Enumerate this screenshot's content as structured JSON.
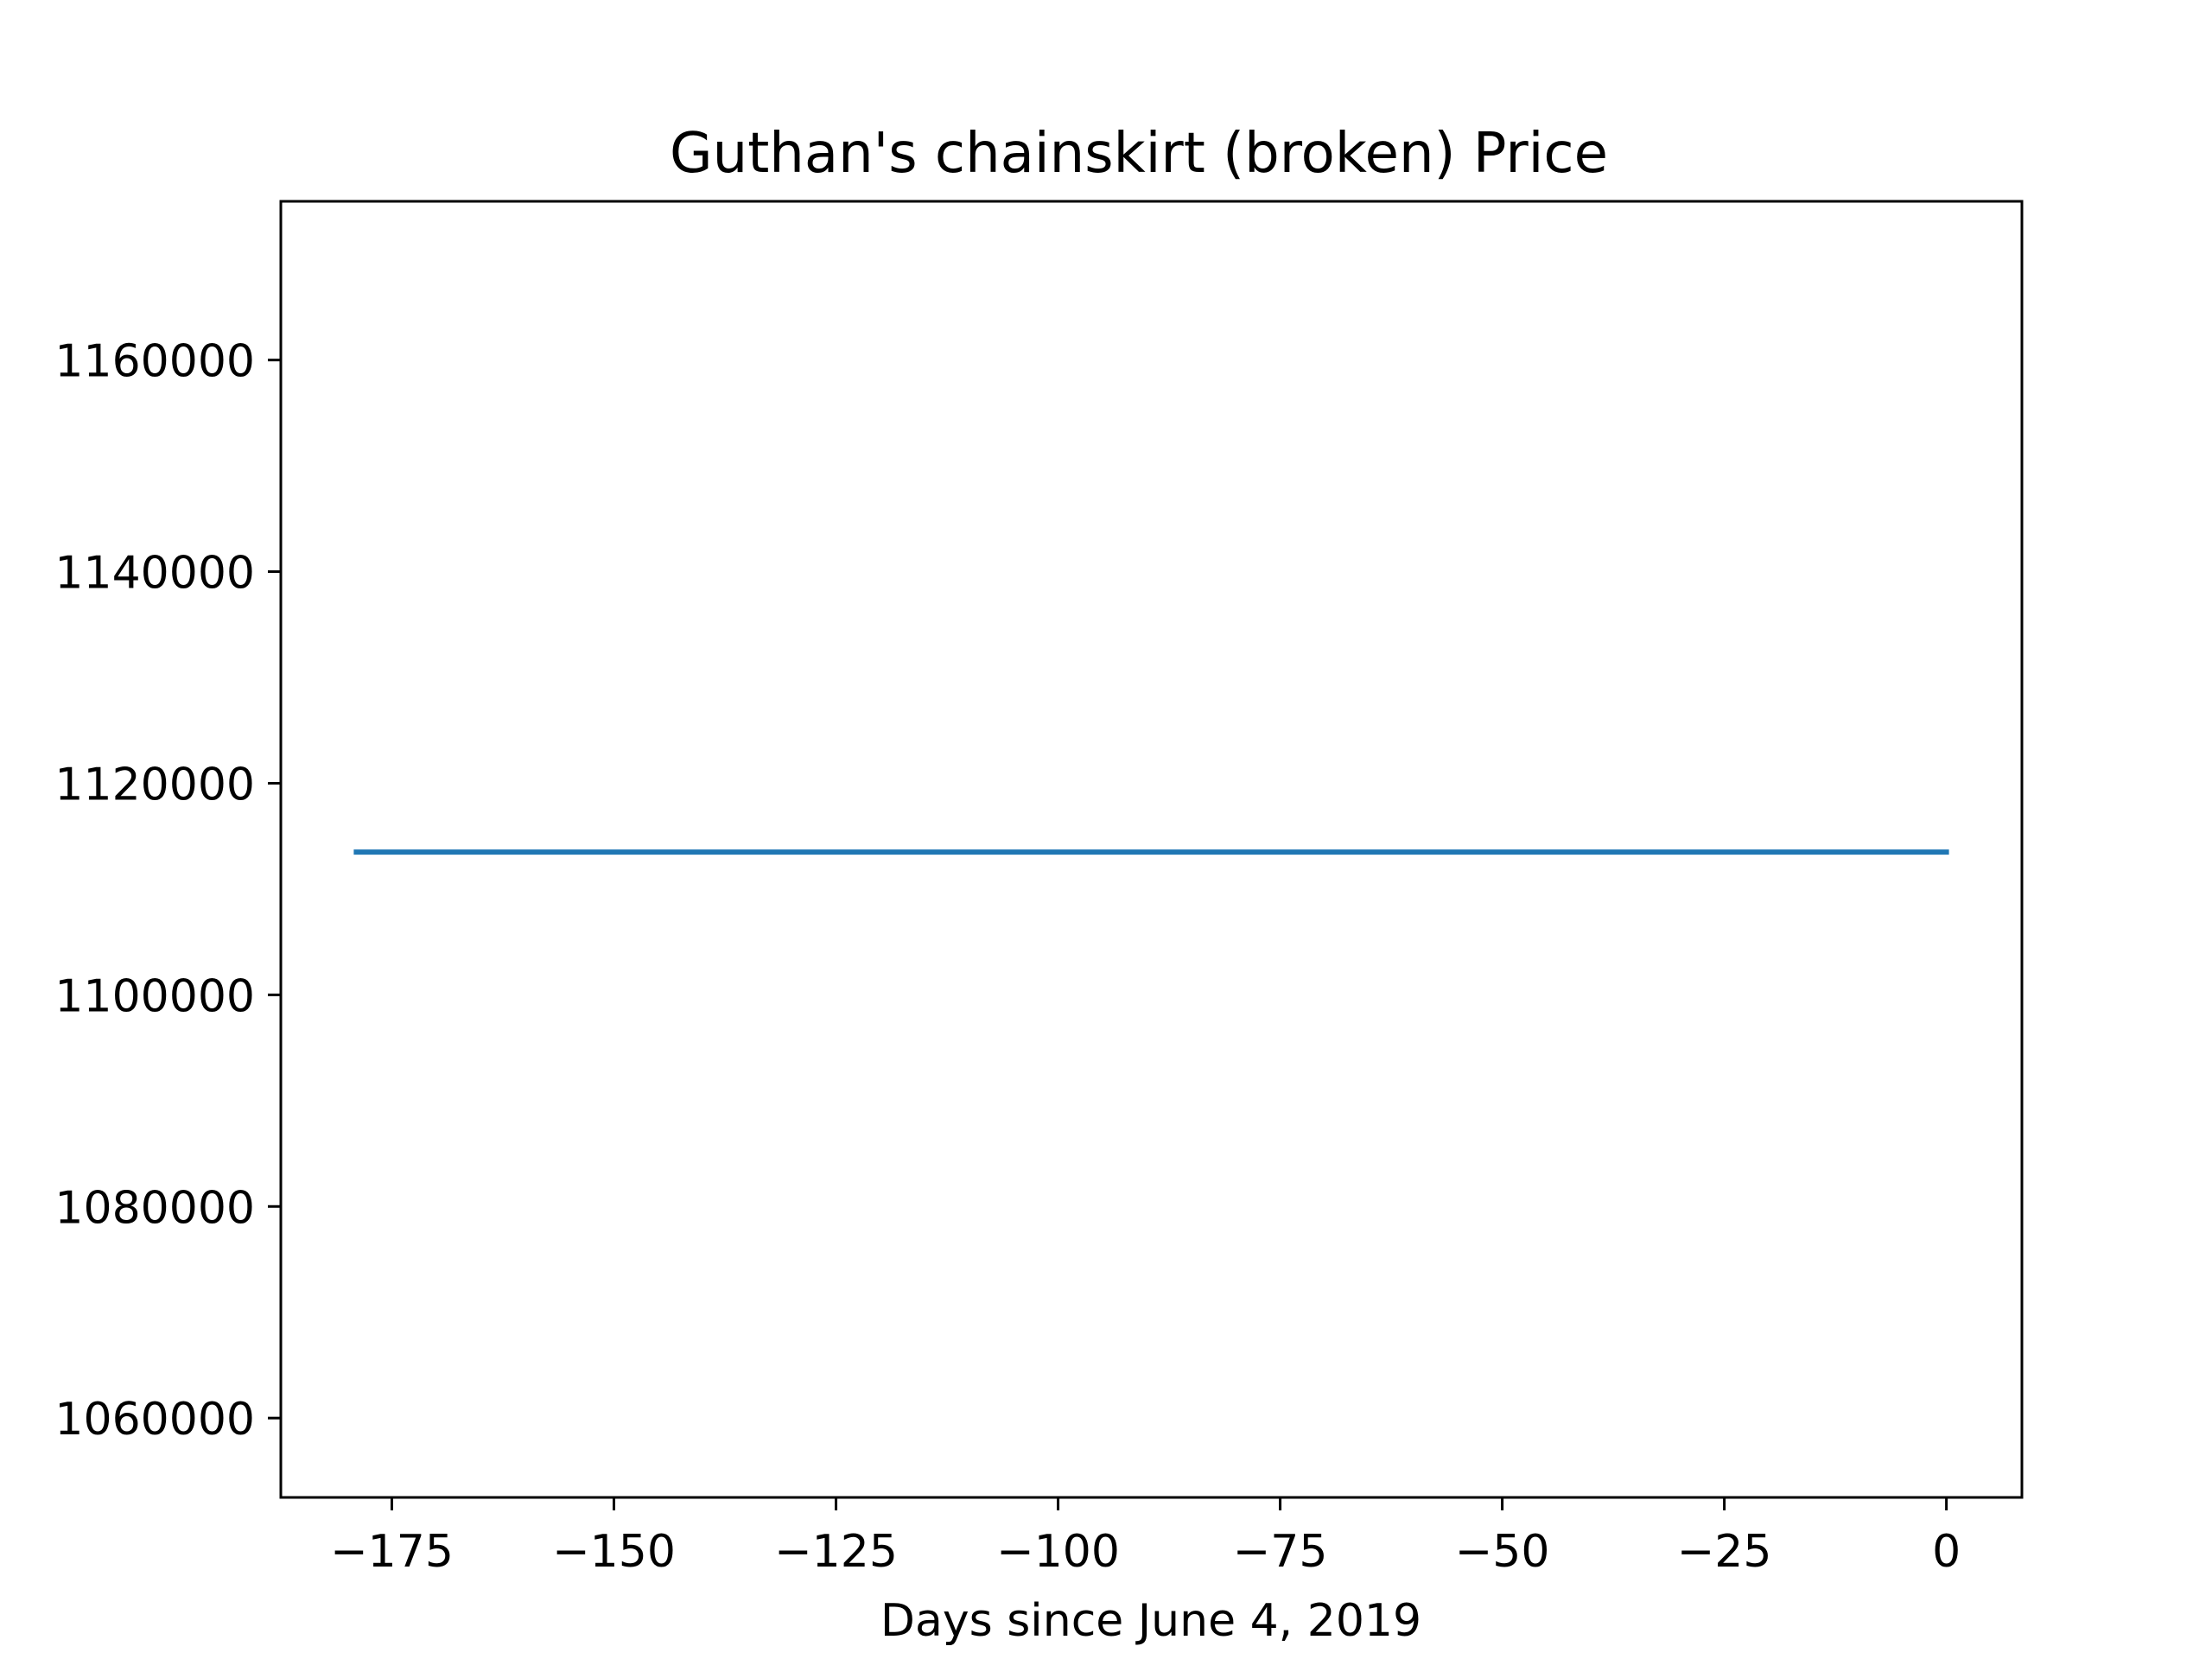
{
  "chart_data": {
    "type": "line",
    "title": "Guthan's chainskirt (broken) Price",
    "xlabel": "Days since June 4, 2019",
    "ylabel": "",
    "xlim": [
      -187.5,
      8.5
    ],
    "ylim": [
      1052500,
      1175000
    ],
    "xticks": [
      -175,
      -150,
      -125,
      -100,
      -75,
      -50,
      -25,
      0
    ],
    "xtick_labels": [
      "−175",
      "−150",
      "−125",
      "−100",
      "−75",
      "−50",
      "−25",
      "0"
    ],
    "yticks": [
      1060000,
      1080000,
      1100000,
      1120000,
      1140000,
      1160000
    ],
    "ytick_labels": [
      "1060000",
      "1080000",
      "1100000",
      "1120000",
      "1140000",
      "1160000"
    ],
    "grid": false,
    "series": [
      {
        "color": "#1f77b4",
        "x": [
          -179,
          0
        ],
        "y": [
          1113500,
          1113500
        ]
      }
    ]
  }
}
